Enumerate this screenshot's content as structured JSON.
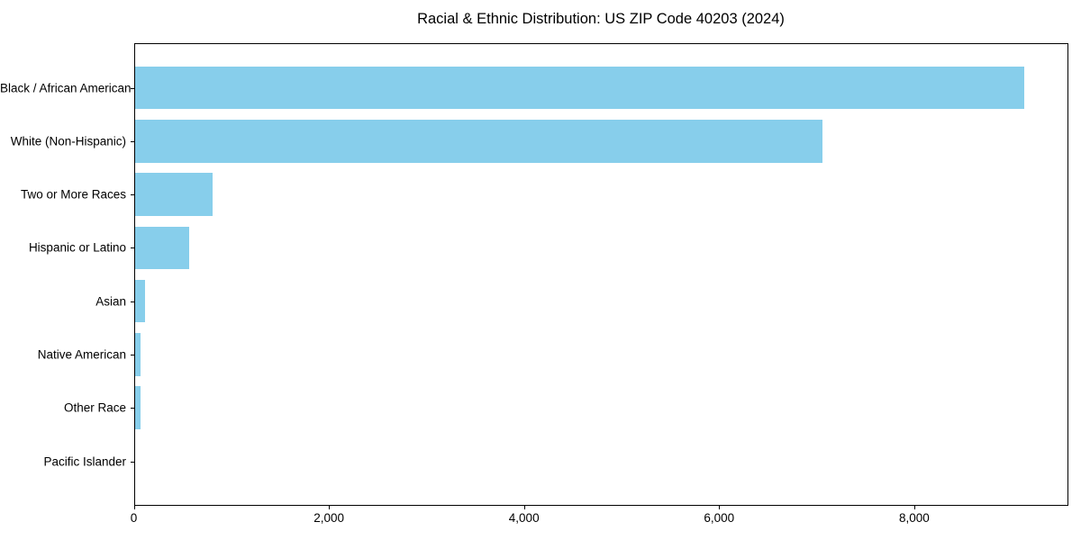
{
  "chart_data": {
    "type": "bar",
    "orientation": "horizontal",
    "title": "Racial & Ethnic Distribution: US ZIP Code 40203 (2024)",
    "categories": [
      "Black / African American",
      "White (Non-Hispanic)",
      "Two or More Races",
      "Hispanic or Latino",
      "Asian",
      "Native American",
      "Other Race",
      "Pacific Islander"
    ],
    "values": [
      9120,
      7050,
      800,
      560,
      110,
      60,
      60,
      0
    ],
    "bar_color": "#87CEEB",
    "xlabel": "",
    "ylabel": "",
    "xlim": [
      0,
      9580
    ],
    "x_ticks": [
      0,
      2000,
      4000,
      6000,
      8000
    ],
    "x_tick_labels": [
      "0",
      "2,000",
      "4,000",
      "6,000",
      "8,000"
    ],
    "grid": false,
    "legend": "none",
    "frame_color": "#000000",
    "background_color": "#ffffff"
  }
}
